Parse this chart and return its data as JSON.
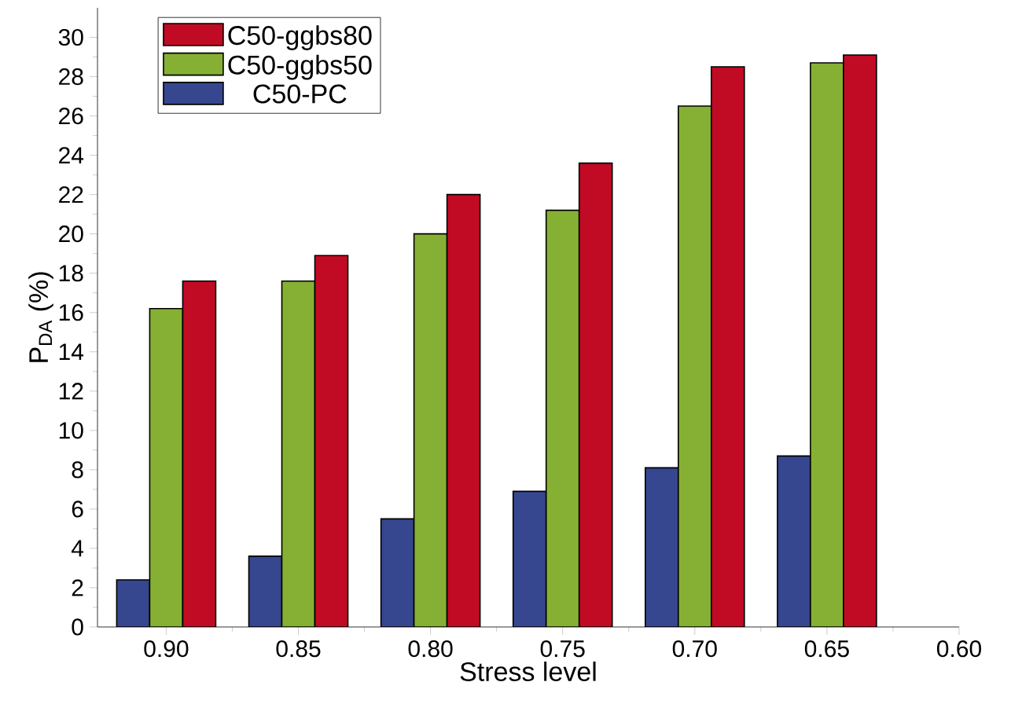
{
  "chart_data": {
    "type": "bar",
    "xlabel": "Stress level",
    "ylabel": "P$_{DA}$ (%)",
    "categories": [
      "0.90",
      "0.85",
      "0.80",
      "0.75",
      "0.70",
      "0.65",
      "0.60"
    ],
    "series": [
      {
        "name": "C50-PC",
        "color": "#36468f",
        "values": [
          2.4,
          3.6,
          5.5,
          6.9,
          8.1,
          8.7,
          null
        ]
      },
      {
        "name": "C50-ggbs50",
        "color": "#86b034",
        "values": [
          16.2,
          17.6,
          20.0,
          21.2,
          26.5,
          28.7,
          null
        ]
      },
      {
        "name": "C50-ggbs80",
        "color": "#c10a23",
        "values": [
          17.6,
          18.9,
          22.0,
          23.6,
          28.5,
          29.1,
          null
        ]
      }
    ],
    "ylim": [
      0,
      31.5
    ],
    "yticks": [
      0,
      2,
      4,
      6,
      8,
      10,
      12,
      14,
      16,
      18,
      20,
      22,
      24,
      26,
      28,
      30
    ],
    "legend": "top left"
  }
}
